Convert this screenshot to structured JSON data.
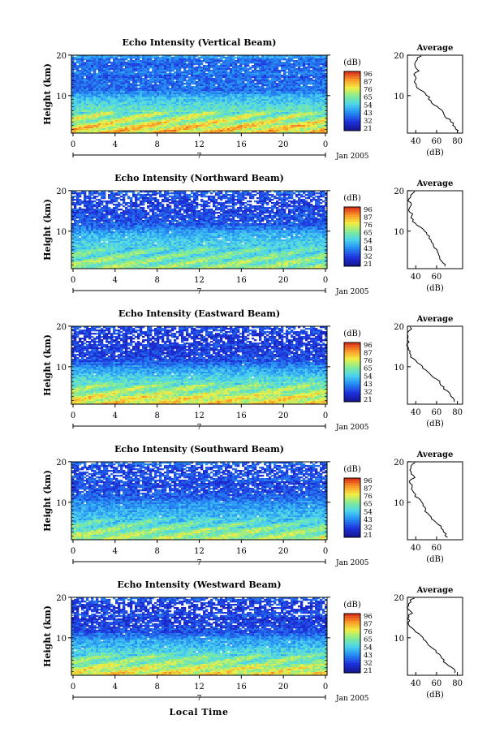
{
  "chart_data": [
    {
      "type": "heatmap",
      "title": "Echo Intensity (Vertical Beam)",
      "ylabel": "Height (km)",
      "y_ticks": [
        "20",
        "10"
      ],
      "x_ticks": [
        "0",
        "4",
        "8",
        "12",
        "16",
        "20",
        "0"
      ],
      "date_label": "Jan 2005",
      "day_label": "7",
      "colorbar_unit": "(dB)",
      "colorbar_ticks": [
        "96",
        "87",
        "76",
        "65",
        "54",
        "43",
        "32",
        "21"
      ],
      "profile_title": "Average",
      "profile_xlabel": "(dB)",
      "profile_xticks": [
        "40",
        "60",
        "80"
      ],
      "profile_yticks": [
        "20",
        "10"
      ],
      "profile": {
        "height_km": [
          0,
          1,
          2,
          3,
          4,
          5,
          6,
          7,
          8,
          9,
          10,
          11,
          12,
          13,
          14,
          15,
          16,
          17,
          18,
          19,
          20
        ],
        "db": [
          80,
          78,
          76,
          72,
          68,
          66,
          62,
          58,
          55,
          52,
          48,
          44,
          40,
          40,
          40,
          38,
          42,
          40,
          38,
          40,
          46
        ]
      }
    },
    {
      "type": "heatmap",
      "title": "Echo Intensity (Northward Beam)",
      "ylabel": "Height (km)",
      "y_ticks": [
        "20",
        "10"
      ],
      "x_ticks": [
        "0",
        "4",
        "8",
        "12",
        "16",
        "20",
        "0"
      ],
      "date_label": "Jan 2005",
      "day_label": "7",
      "colorbar_unit": "(dB)",
      "colorbar_ticks": [
        "96",
        "87",
        "76",
        "65",
        "54",
        "43",
        "32",
        "21"
      ],
      "profile_title": "Average",
      "profile_xlabel": "(dB)",
      "profile_xticks": [
        "40",
        "60"
      ],
      "profile_yticks": [
        "20",
        "10"
      ],
      "profile": {
        "height_km": [
          0,
          1,
          2,
          3,
          4,
          5,
          6,
          7,
          8,
          9,
          10,
          11,
          12,
          13,
          14,
          15,
          16,
          17,
          18,
          19,
          20
        ],
        "db": [
          68,
          66,
          64,
          62,
          60,
          58,
          56,
          54,
          52,
          50,
          46,
          42,
          38,
          36,
          36,
          34,
          36,
          34,
          34,
          36,
          38
        ]
      }
    },
    {
      "type": "heatmap",
      "title": "Echo Intensity (Eastward Beam)",
      "ylabel": "Height (km)",
      "y_ticks": [
        "20",
        "10"
      ],
      "x_ticks": [
        "0",
        "4",
        "8",
        "12",
        "16",
        "20",
        "0"
      ],
      "date_label": "Jan 2005",
      "day_label": "7",
      "colorbar_unit": "(dB)",
      "colorbar_ticks": [
        "96",
        "87",
        "76",
        "65",
        "54",
        "43",
        "32",
        "21"
      ],
      "profile_title": "Average",
      "profile_xlabel": "(dB)",
      "profile_xticks": [
        "40",
        "60",
        "80"
      ],
      "profile_yticks": [
        "20",
        "10"
      ],
      "profile": {
        "height_km": [
          0,
          1,
          2,
          3,
          4,
          5,
          6,
          7,
          8,
          9,
          10,
          11,
          12,
          13,
          14,
          15,
          16,
          17,
          18,
          19,
          20
        ],
        "db": [
          78,
          76,
          74,
          70,
          66,
          64,
          60,
          56,
          52,
          48,
          44,
          40,
          36,
          34,
          34,
          32,
          34,
          32,
          32,
          34,
          36
        ]
      }
    },
    {
      "type": "heatmap",
      "title": "Echo Intensity (Southward Beam)",
      "ylabel": "Height (km)",
      "y_ticks": [
        "20",
        "10"
      ],
      "x_ticks": [
        "0",
        "4",
        "8",
        "12",
        "16",
        "20",
        "0"
      ],
      "date_label": "Jan 2005",
      "day_label": "7",
      "colorbar_unit": "(dB)",
      "colorbar_ticks": [
        "96",
        "87",
        "76",
        "65",
        "54",
        "43",
        "32",
        "21"
      ],
      "profile_title": "Average",
      "profile_xlabel": "(dB)",
      "profile_xticks": [
        "40",
        "60"
      ],
      "profile_yticks": [
        "20",
        "10"
      ],
      "profile": {
        "height_km": [
          0,
          1,
          2,
          3,
          4,
          5,
          6,
          7,
          8,
          9,
          10,
          11,
          12,
          13,
          14,
          15,
          16,
          17,
          18,
          19,
          20
        ],
        "db": [
          70,
          68,
          66,
          64,
          60,
          56,
          54,
          50,
          48,
          46,
          44,
          40,
          38,
          36,
          36,
          34,
          38,
          36,
          34,
          36,
          40
        ]
      }
    },
    {
      "type": "heatmap",
      "title": "Echo Intensity (Westward Beam)",
      "ylabel": "Height (km)",
      "y_ticks": [
        "20",
        "10"
      ],
      "x_ticks": [
        "0",
        "4",
        "8",
        "12",
        "16",
        "20",
        "0"
      ],
      "date_label": "Jan 2005",
      "day_label": "7",
      "colorbar_unit": "(dB)",
      "colorbar_ticks": [
        "96",
        "87",
        "76",
        "65",
        "54",
        "43",
        "32",
        "21"
      ],
      "profile_title": "Average",
      "profile_xlabel": "(dB)",
      "profile_xticks": [
        "40",
        "60",
        "80"
      ],
      "profile_yticks": [
        "20",
        "10"
      ],
      "profile": {
        "height_km": [
          0,
          1,
          2,
          3,
          4,
          5,
          6,
          7,
          8,
          9,
          10,
          11,
          12,
          13,
          14,
          15,
          16,
          17,
          18,
          19,
          20
        ],
        "db": [
          78,
          76,
          72,
          68,
          64,
          62,
          58,
          54,
          50,
          48,
          44,
          40,
          36,
          34,
          34,
          32,
          36,
          34,
          32,
          34,
          38
        ]
      }
    }
  ],
  "footer": {
    "xlabel": "Local Time"
  }
}
